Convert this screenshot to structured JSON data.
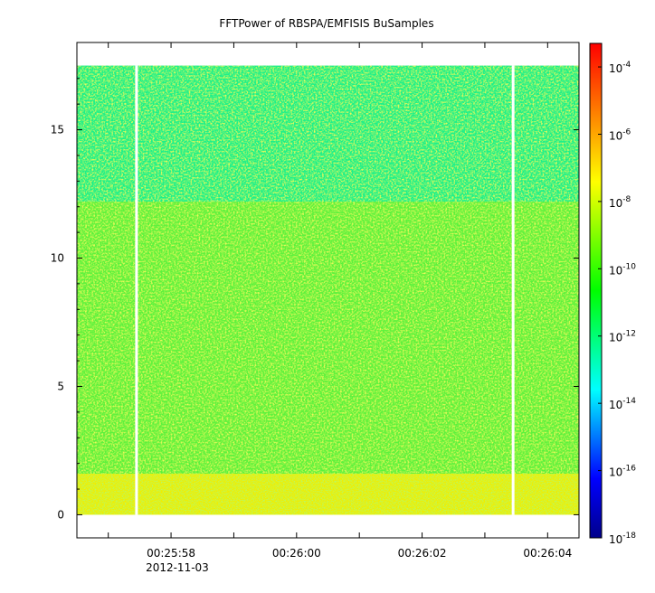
{
  "chart_data": {
    "type": "heatmap",
    "title": "FFTPower of RBSPA/EMFISIS  BuSamples",
    "xlabel": "",
    "ylabel": "",
    "x_ticks": [
      {
        "value": 57.5,
        "label": "00:25:58",
        "sublabel": "2012-11-03"
      },
      {
        "value": 59.5,
        "label": "00:26:00",
        "sublabel": ""
      },
      {
        "value": 61.5,
        "label": "00:26:02",
        "sublabel": ""
      },
      {
        "value": 63.5,
        "label": "00:26:04",
        "sublabel": ""
      }
    ],
    "x_minor_ticks": [
      56.5,
      58.5,
      60.5,
      62.5
    ],
    "xlim": [
      56,
      64
    ],
    "xlim_units": "seconds after 00:25:00 UTC, 2012-11-03",
    "y_ticks": [
      {
        "value": 0,
        "label": "0"
      },
      {
        "value": 5,
        "label": "5"
      },
      {
        "value": 10,
        "label": "10"
      },
      {
        "value": 15,
        "label": "15"
      }
    ],
    "ylim": [
      -0.9,
      18.4
    ],
    "data_ymax": 17.5,
    "gaps_x": [
      56.95,
      62.95
    ],
    "colorbar": {
      "scale": "log",
      "range": [
        -18,
        -3.3
      ],
      "ticks": [
        {
          "base": "10",
          "exp": "-4"
        },
        {
          "base": "10",
          "exp": "-6"
        },
        {
          "base": "10",
          "exp": "-8"
        },
        {
          "base": "10",
          "exp": "-10"
        },
        {
          "base": "10",
          "exp": "-12"
        },
        {
          "base": "10",
          "exp": "-14"
        },
        {
          "base": "10",
          "exp": "-16"
        },
        {
          "base": "10",
          "exp": "-18"
        }
      ],
      "colormap": [
        "#00008b",
        "#0000ff",
        "#00ffff",
        "#00ff00",
        "#ffff00",
        "#ff0000"
      ]
    },
    "power_bands": [
      {
        "y": [
          0.0,
          1.6
        ],
        "log10_power": -8.6,
        "color": "#f0ee00"
      },
      {
        "y": [
          1.6,
          12.2
        ],
        "log10_power": -10.3,
        "color": "#5cf23c"
      },
      {
        "y": [
          12.2,
          17.5
        ],
        "log10_power": -12.0,
        "color": "#1cf08a"
      }
    ],
    "grid": false
  }
}
